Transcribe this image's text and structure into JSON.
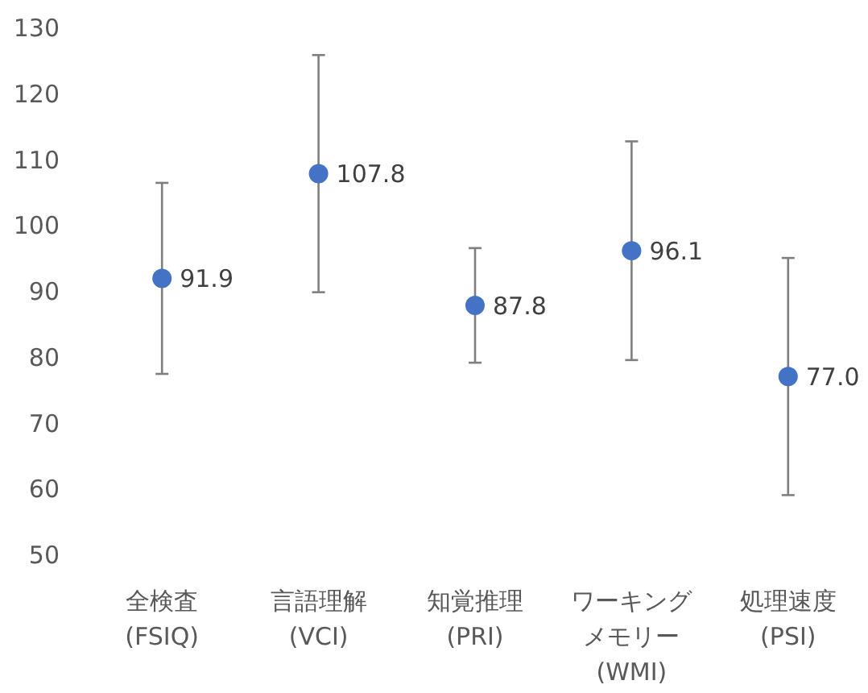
{
  "chart_data": {
    "type": "scatter",
    "categories": [
      "全検査\n(FSIQ)",
      "言語理解\n(VCI)",
      "知覚推理\n(PRI)",
      "ワーキングメモリー\n(WMI)",
      "処理速度\n(PSI)"
    ],
    "values": [
      91.9,
      107.8,
      87.8,
      96.1,
      77.0
    ],
    "errors": [
      14.5,
      18,
      8.7,
      16.6,
      18
    ],
    "value_labels": [
      "91.9",
      "107.8",
      "87.8",
      "96.1",
      "77.0"
    ],
    "color": "#4472c4",
    "marker": "circle",
    "ylim": [
      50,
      130
    ],
    "yticks": [
      50,
      60,
      70,
      80,
      90,
      100,
      110,
      120,
      130
    ],
    "grid": false
  }
}
